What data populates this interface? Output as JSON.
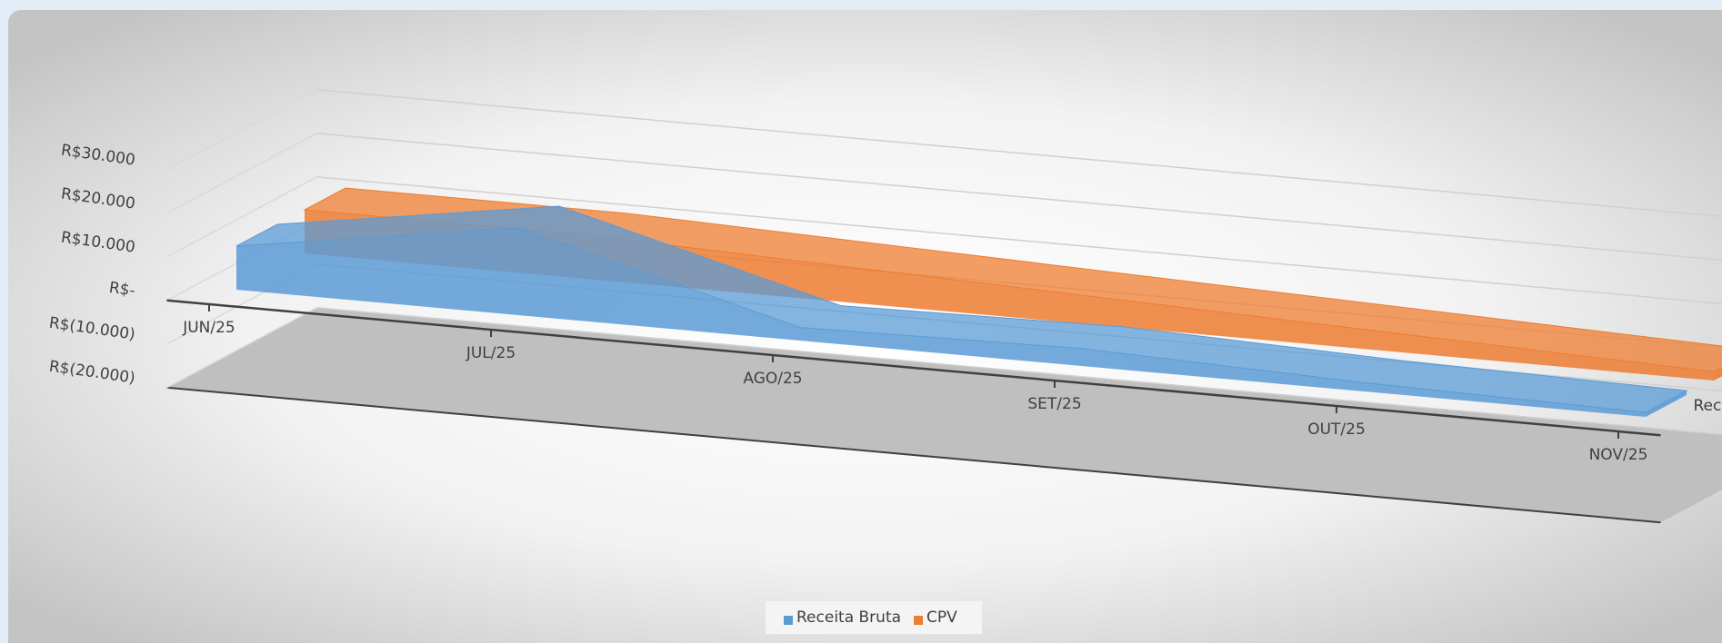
{
  "chart_data": {
    "type": "area3d",
    "categories": [
      "JUN/25",
      "JUL/25",
      "AGO/25",
      "SET/25",
      "OUT/25",
      "NOV/25"
    ],
    "series": [
      {
        "name": "Receita Bruta",
        "color": "#5b9bd5",
        "values": [
          10000,
          20000,
          3000,
          4000,
          2000,
          1000
        ]
      },
      {
        "name": "CPV",
        "color": "#ed7d31",
        "values": [
          10000,
          10000,
          8000,
          6000,
          4000,
          2000
        ]
      }
    ],
    "ylim": [
      -20000,
      30000
    ],
    "yticks": [
      {
        "value": -20000,
        "label": "R$(20.000)"
      },
      {
        "value": -10000,
        "label": "R$(10.000)"
      },
      {
        "value": 0,
        "label": "R$-"
      },
      {
        "value": 10000,
        "label": "R$10.000"
      },
      {
        "value": 20000,
        "label": "R$20.000"
      },
      {
        "value": 30000,
        "label": "R$30.000"
      }
    ],
    "grid": true
  }
}
